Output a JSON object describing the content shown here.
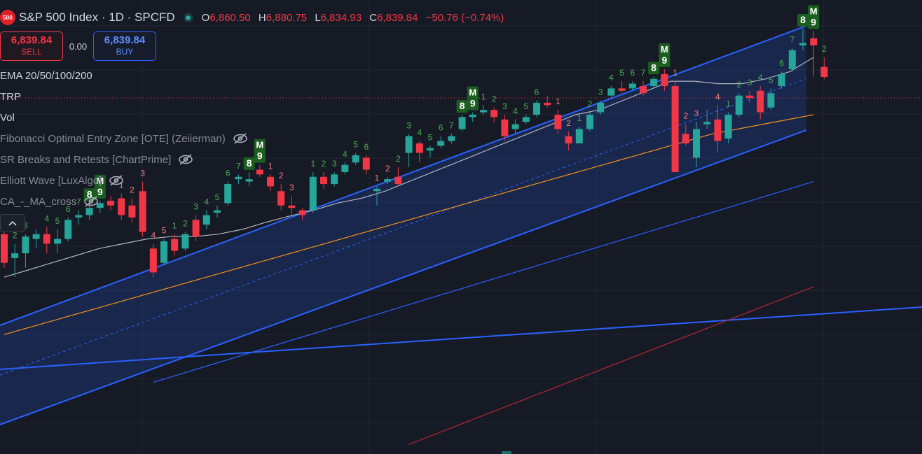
{
  "header": {
    "logo_text": "500",
    "title": "S&P 500 Index · 1D · SPCFD",
    "ohlc": [
      {
        "key": "O",
        "value": "6,860.50"
      },
      {
        "key": "H",
        "value": "6,880.75"
      },
      {
        "key": "L",
        "value": "6,834.93"
      },
      {
        "key": "C",
        "value": "6,839.84"
      }
    ],
    "change": "−50.76 (−0.74%)"
  },
  "trade": {
    "sell_price": "6,839.84",
    "sell_label": "SELL",
    "spread": "0.00",
    "buy_price": "6,839.84",
    "buy_label": "BUY"
  },
  "indicators": [
    {
      "label": "EMA 20/50/100/200",
      "visible": true
    },
    {
      "label": "TRP",
      "visible": true
    },
    {
      "label": "Vol",
      "visible": true
    },
    {
      "label": "Fibonacci Optimal Entry Zone [OTE] (Zeiierman)",
      "visible": false
    },
    {
      "label": "SR Breaks and Retests [ChartPrime]",
      "visible": false
    },
    {
      "label": "Elliott Wave [LuxAlgo]",
      "visible": false
    },
    {
      "label": "CA_-_MA_cross",
      "visible": false
    }
  ],
  "colors": {
    "background": "#161a25",
    "up": "#26a69a",
    "down": "#f23645",
    "channel": "#2962ff",
    "ema20": "#b2b5be",
    "ema50": "#f7931a",
    "ema100": "#2962ff",
    "ema200": "#b22833",
    "td_up": "#4caf50",
    "td_down": "#f77c80",
    "marker_bg": "#1b5e20"
  },
  "chart_data": {
    "type": "candlestick",
    "symbol": "S&P 500 Index",
    "interval": "1D",
    "candles": [
      {
        "o": 6510,
        "h": 6520,
        "l": 6440,
        "c": 6450
      },
      {
        "o": 6460,
        "h": 6490,
        "l": 6420,
        "c": 6470
      },
      {
        "o": 6470,
        "h": 6510,
        "l": 6440,
        "c": 6505
      },
      {
        "o": 6500,
        "h": 6520,
        "l": 6480,
        "c": 6510
      },
      {
        "o": 6510,
        "h": 6525,
        "l": 6470,
        "c": 6490
      },
      {
        "o": 6490,
        "h": 6520,
        "l": 6470,
        "c": 6500
      },
      {
        "o": 6500,
        "h": 6545,
        "l": 6495,
        "c": 6540
      },
      {
        "o": 6545,
        "h": 6560,
        "l": 6530,
        "c": 6550
      },
      {
        "o": 6550,
        "h": 6575,
        "l": 6540,
        "c": 6565
      },
      {
        "o": 6565,
        "h": 6580,
        "l": 6555,
        "c": 6575
      },
      {
        "o": 6580,
        "h": 6590,
        "l": 6560,
        "c": 6570
      },
      {
        "o": 6585,
        "h": 6595,
        "l": 6540,
        "c": 6550
      },
      {
        "o": 6570,
        "h": 6585,
        "l": 6535,
        "c": 6545
      },
      {
        "o": 6600,
        "h": 6620,
        "l": 6505,
        "c": 6515
      },
      {
        "o": 6480,
        "h": 6490,
        "l": 6420,
        "c": 6430
      },
      {
        "o": 6450,
        "h": 6500,
        "l": 6445,
        "c": 6495
      },
      {
        "o": 6500,
        "h": 6510,
        "l": 6465,
        "c": 6475
      },
      {
        "o": 6480,
        "h": 6515,
        "l": 6475,
        "c": 6510
      },
      {
        "o": 6540,
        "h": 6550,
        "l": 6495,
        "c": 6505
      },
      {
        "o": 6530,
        "h": 6560,
        "l": 6520,
        "c": 6550
      },
      {
        "o": 6555,
        "h": 6570,
        "l": 6545,
        "c": 6560
      },
      {
        "o": 6575,
        "h": 6620,
        "l": 6570,
        "c": 6615
      },
      {
        "o": 6625,
        "h": 6635,
        "l": 6615,
        "c": 6630
      },
      {
        "o": 6620,
        "h": 6640,
        "l": 6610,
        "c": 6625
      },
      {
        "o": 6645,
        "h": 6655,
        "l": 6630,
        "c": 6635
      },
      {
        "o": 6630,
        "h": 6635,
        "l": 6600,
        "c": 6610
      },
      {
        "o": 6600,
        "h": 6615,
        "l": 6560,
        "c": 6570
      },
      {
        "o": 6570,
        "h": 6590,
        "l": 6545,
        "c": 6565
      },
      {
        "o": 6560,
        "h": 6565,
        "l": 6540,
        "c": 6550
      },
      {
        "o": 6560,
        "h": 6640,
        "l": 6555,
        "c": 6630
      },
      {
        "o": 6630,
        "h": 6640,
        "l": 6605,
        "c": 6615
      },
      {
        "o": 6615,
        "h": 6640,
        "l": 6610,
        "c": 6635
      },
      {
        "o": 6640,
        "h": 6660,
        "l": 6635,
        "c": 6655
      },
      {
        "o": 6660,
        "h": 6680,
        "l": 6655,
        "c": 6675
      },
      {
        "o": 6670,
        "h": 6675,
        "l": 6635,
        "c": 6645
      },
      {
        "o": 6600,
        "h": 6610,
        "l": 6570,
        "c": 6605
      },
      {
        "o": 6620,
        "h": 6630,
        "l": 6615,
        "c": 6625
      },
      {
        "o": 6630,
        "h": 6650,
        "l": 6610,
        "c": 6615
      },
      {
        "o": 6680,
        "h": 6720,
        "l": 6650,
        "c": 6715
      },
      {
        "o": 6700,
        "h": 6705,
        "l": 6660,
        "c": 6680
      },
      {
        "o": 6685,
        "h": 6695,
        "l": 6670,
        "c": 6690
      },
      {
        "o": 6695,
        "h": 6715,
        "l": 6690,
        "c": 6705
      },
      {
        "o": 6705,
        "h": 6720,
        "l": 6700,
        "c": 6715
      },
      {
        "o": 6730,
        "h": 6760,
        "l": 6725,
        "c": 6755
      },
      {
        "o": 6755,
        "h": 6765,
        "l": 6745,
        "c": 6760
      },
      {
        "o": 6765,
        "h": 6780,
        "l": 6760,
        "c": 6770
      },
      {
        "o": 6770,
        "h": 6775,
        "l": 6745,
        "c": 6755
      },
      {
        "o": 6750,
        "h": 6760,
        "l": 6705,
        "c": 6715
      },
      {
        "o": 6730,
        "h": 6750,
        "l": 6720,
        "c": 6740
      },
      {
        "o": 6745,
        "h": 6760,
        "l": 6740,
        "c": 6755
      },
      {
        "o": 6760,
        "h": 6790,
        "l": 6755,
        "c": 6785
      },
      {
        "o": 6785,
        "h": 6800,
        "l": 6775,
        "c": 6780
      },
      {
        "o": 6760,
        "h": 6770,
        "l": 6720,
        "c": 6730
      },
      {
        "o": 6715,
        "h": 6725,
        "l": 6685,
        "c": 6700
      },
      {
        "o": 6700,
        "h": 6735,
        "l": 6700,
        "c": 6730
      },
      {
        "o": 6730,
        "h": 6765,
        "l": 6725,
        "c": 6760
      },
      {
        "o": 6765,
        "h": 6790,
        "l": 6760,
        "c": 6785
      },
      {
        "o": 6800,
        "h": 6820,
        "l": 6795,
        "c": 6815
      },
      {
        "o": 6815,
        "h": 6830,
        "l": 6805,
        "c": 6810
      },
      {
        "o": 6815,
        "h": 6830,
        "l": 6810,
        "c": 6825
      },
      {
        "o": 6820,
        "h": 6830,
        "l": 6800,
        "c": 6805
      },
      {
        "o": 6820,
        "h": 6840,
        "l": 6815,
        "c": 6835
      },
      {
        "o": 6845,
        "h": 6855,
        "l": 6810,
        "c": 6820
      },
      {
        "o": 6820,
        "h": 6830,
        "l": 6640,
        "c": 6640
      },
      {
        "o": 6720,
        "h": 6740,
        "l": 6695,
        "c": 6700
      },
      {
        "o": 6670,
        "h": 6745,
        "l": 6650,
        "c": 6730
      },
      {
        "o": 6740,
        "h": 6770,
        "l": 6730,
        "c": 6745
      },
      {
        "o": 6750,
        "h": 6780,
        "l": 6680,
        "c": 6705
      },
      {
        "o": 6710,
        "h": 6765,
        "l": 6700,
        "c": 6760
      },
      {
        "o": 6760,
        "h": 6805,
        "l": 6755,
        "c": 6800
      },
      {
        "o": 6800,
        "h": 6810,
        "l": 6785,
        "c": 6795
      },
      {
        "o": 6810,
        "h": 6820,
        "l": 6750,
        "c": 6765
      },
      {
        "o": 6775,
        "h": 6815,
        "l": 6770,
        "c": 6805
      },
      {
        "o": 6820,
        "h": 6850,
        "l": 6815,
        "c": 6845
      },
      {
        "o": 6855,
        "h": 6900,
        "l": 6850,
        "c": 6895
      },
      {
        "o": 6905,
        "h": 6940,
        "l": 6895,
        "c": 6910
      },
      {
        "o": 6920,
        "h": 6935,
        "l": 6840,
        "c": 6905
      },
      {
        "o": 6860,
        "h": 6880,
        "l": 6834,
        "c": 6839
      }
    ],
    "td_counts": [
      {
        "i": 0,
        "n": "1",
        "dir": "up"
      },
      {
        "i": 1,
        "n": "2",
        "dir": "up"
      },
      {
        "i": 2,
        "n": "3",
        "dir": "up"
      },
      {
        "i": 4,
        "n": "4",
        "dir": "up"
      },
      {
        "i": 5,
        "n": "5",
        "dir": "up"
      },
      {
        "i": 6,
        "n": "6",
        "dir": "up"
      },
      {
        "i": 7,
        "n": "7",
        "dir": "up"
      },
      {
        "i": 8,
        "n": "8",
        "dir": "up",
        "box": true
      },
      {
        "i": 9,
        "n": "9",
        "dir": "up",
        "box": true
      },
      {
        "i": 11,
        "n": "1",
        "dir": "down"
      },
      {
        "i": 12,
        "n": "2",
        "dir": "down"
      },
      {
        "i": 13,
        "n": "3",
        "dir": "down"
      },
      {
        "i": 14,
        "n": "4",
        "dir": "down"
      },
      {
        "i": 15,
        "n": "5",
        "dir": "down"
      },
      {
        "i": 16,
        "n": "1",
        "dir": "up"
      },
      {
        "i": 17,
        "n": "2",
        "dir": "up"
      },
      {
        "i": 18,
        "n": "3",
        "dir": "up"
      },
      {
        "i": 19,
        "n": "4",
        "dir": "up"
      },
      {
        "i": 20,
        "n": "5",
        "dir": "up"
      },
      {
        "i": 21,
        "n": "6",
        "dir": "up"
      },
      {
        "i": 22,
        "n": "7",
        "dir": "up"
      },
      {
        "i": 23,
        "n": "8",
        "dir": "up",
        "box": true
      },
      {
        "i": 24,
        "n": "9",
        "dir": "up",
        "box": true
      },
      {
        "i": 25,
        "n": "1",
        "dir": "down"
      },
      {
        "i": 26,
        "n": "2",
        "dir": "down"
      },
      {
        "i": 27,
        "n": "3",
        "dir": "down"
      },
      {
        "i": 29,
        "n": "1",
        "dir": "up"
      },
      {
        "i": 30,
        "n": "2",
        "dir": "up"
      },
      {
        "i": 31,
        "n": "3",
        "dir": "up"
      },
      {
        "i": 32,
        "n": "4",
        "dir": "up"
      },
      {
        "i": 33,
        "n": "5",
        "dir": "up"
      },
      {
        "i": 34,
        "n": "6",
        "dir": "up"
      },
      {
        "i": 35,
        "n": "1",
        "dir": "down"
      },
      {
        "i": 36,
        "n": "2",
        "dir": "down"
      },
      {
        "i": 37,
        "n": "2",
        "dir": "up"
      },
      {
        "i": 38,
        "n": "3",
        "dir": "up"
      },
      {
        "i": 39,
        "n": "4",
        "dir": "up"
      },
      {
        "i": 40,
        "n": "5",
        "dir": "up"
      },
      {
        "i": 41,
        "n": "6",
        "dir": "up"
      },
      {
        "i": 42,
        "n": "7",
        "dir": "up"
      },
      {
        "i": 43,
        "n": "8",
        "dir": "up",
        "box": true
      },
      {
        "i": 44,
        "n": "9",
        "dir": "up",
        "box": true
      },
      {
        "i": 45,
        "n": "1",
        "dir": "up"
      },
      {
        "i": 46,
        "n": "2",
        "dir": "up"
      },
      {
        "i": 47,
        "n": "3",
        "dir": "up"
      },
      {
        "i": 48,
        "n": "4",
        "dir": "up"
      },
      {
        "i": 49,
        "n": "5",
        "dir": "up"
      },
      {
        "i": 50,
        "n": "6",
        "dir": "up"
      },
      {
        "i": 52,
        "n": "1",
        "dir": "down"
      },
      {
        "i": 53,
        "n": "2",
        "dir": "down"
      },
      {
        "i": 54,
        "n": "1",
        "dir": "up"
      },
      {
        "i": 55,
        "n": "2",
        "dir": "up"
      },
      {
        "i": 56,
        "n": "3",
        "dir": "up"
      },
      {
        "i": 57,
        "n": "4",
        "dir": "up"
      },
      {
        "i": 58,
        "n": "5",
        "dir": "up"
      },
      {
        "i": 59,
        "n": "6",
        "dir": "up"
      },
      {
        "i": 60,
        "n": "7",
        "dir": "up"
      },
      {
        "i": 61,
        "n": "8",
        "dir": "up",
        "box": true
      },
      {
        "i": 62,
        "n": "9",
        "dir": "up",
        "box": true
      },
      {
        "i": 63,
        "n": "1",
        "dir": "down"
      },
      {
        "i": 64,
        "n": "2",
        "dir": "down"
      },
      {
        "i": 65,
        "n": "3",
        "dir": "down"
      },
      {
        "i": 67,
        "n": "4",
        "dir": "down"
      },
      {
        "i": 68,
        "n": "1",
        "dir": "up"
      },
      {
        "i": 69,
        "n": "2",
        "dir": "up"
      },
      {
        "i": 70,
        "n": "3",
        "dir": "up"
      },
      {
        "i": 71,
        "n": "4",
        "dir": "up"
      },
      {
        "i": 72,
        "n": "5",
        "dir": "up"
      },
      {
        "i": 73,
        "n": "6",
        "dir": "up"
      },
      {
        "i": 74,
        "n": "7",
        "dir": "up"
      },
      {
        "i": 75,
        "n": "8",
        "dir": "up",
        "box": true
      },
      {
        "i": 76,
        "n": "9",
        "dir": "up",
        "box": true
      },
      {
        "i": 76,
        "n": "1",
        "dir": "down"
      },
      {
        "i": 77,
        "n": "2",
        "dir": "up"
      }
    ],
    "m_markers": [
      9,
      24,
      44,
      62,
      76
    ],
    "ema": {
      "ema20": [
        6420,
        6435,
        6450,
        6465,
        6480,
        6490,
        6500,
        6505,
        6505,
        6510,
        6520,
        6535,
        6548,
        6560,
        6575,
        6585,
        6600,
        6620,
        6640,
        6660,
        6680,
        6700,
        6720,
        6740,
        6760,
        6770,
        6790,
        6810,
        6830,
        6830,
        6825,
        6825,
        6835,
        6850,
        6880
      ],
      "ema50": [
        6300,
        6330,
        6360,
        6390,
        6420,
        6450,
        6480,
        6510,
        6540,
        6570,
        6600,
        6630,
        6660,
        6690,
        6720,
        6740,
        6760
      ],
      "ema100": [
        6200,
        6230,
        6260,
        6290,
        6320,
        6350,
        6380,
        6410,
        6440,
        6470,
        6500,
        6530,
        6560,
        6590,
        6620
      ],
      "ema200": [
        6070,
        6100,
        6130,
        6160,
        6190,
        6220,
        6250,
        6280,
        6310,
        6340,
        6370,
        6400
      ]
    },
    "grid": true,
    "scale": "linear"
  }
}
